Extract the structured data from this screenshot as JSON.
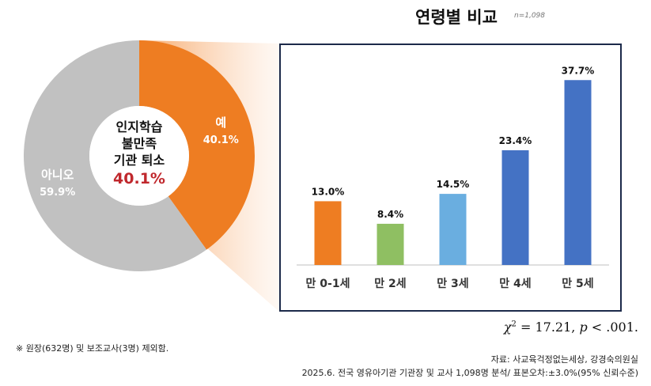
{
  "title": "연령별 비교",
  "sample_label": "n=1,098",
  "stat_test": {
    "chi_symbol": "χ",
    "chi_sup": "2",
    "chi_text": " = 17.21, ",
    "p_symbol": "p",
    "p_text": " < .001."
  },
  "note": "※ 원장(632명) 및 보조교사(3명) 제외함.",
  "source": "자료: 사교육걱정없는세상, 강경숙의원실",
  "survey": "2025.6. 전국 영유아기관 기관장 및 교사 1,098명 분석/ 표본오차:±3.0%(95% 신뢰수준)",
  "chart_data": [
    {
      "type": "pie",
      "title": "인지학습 불만족 기관 퇴소",
      "center_lines": [
        "인지학습",
        "불만족",
        "기관 퇴소"
      ],
      "center_value": "40.1%",
      "slices": [
        {
          "label": "예",
          "value": 40.1,
          "value_label": "40.1%",
          "color": "#ee7d22"
        },
        {
          "label": "아니오",
          "value": 59.9,
          "value_label": "59.9%",
          "color": "#c1c1c1"
        }
      ],
      "center_value_color": "#c0282d"
    },
    {
      "type": "bar",
      "title": "연령별 비교",
      "categories": [
        "만 0-1세",
        "만 2세",
        "만 3세",
        "만 4세",
        "만 5세"
      ],
      "values": [
        13.0,
        8.4,
        14.5,
        23.4,
        37.7
      ],
      "value_labels": [
        "13.0%",
        "8.4%",
        "14.5%",
        "23.4%",
        "37.7%"
      ],
      "colors": [
        "#ee7d22",
        "#8fbf62",
        "#6aaee0",
        "#4472c4",
        "#4472c4"
      ],
      "ylim": [
        0,
        40
      ],
      "xlabel": "",
      "ylabel": ""
    }
  ]
}
